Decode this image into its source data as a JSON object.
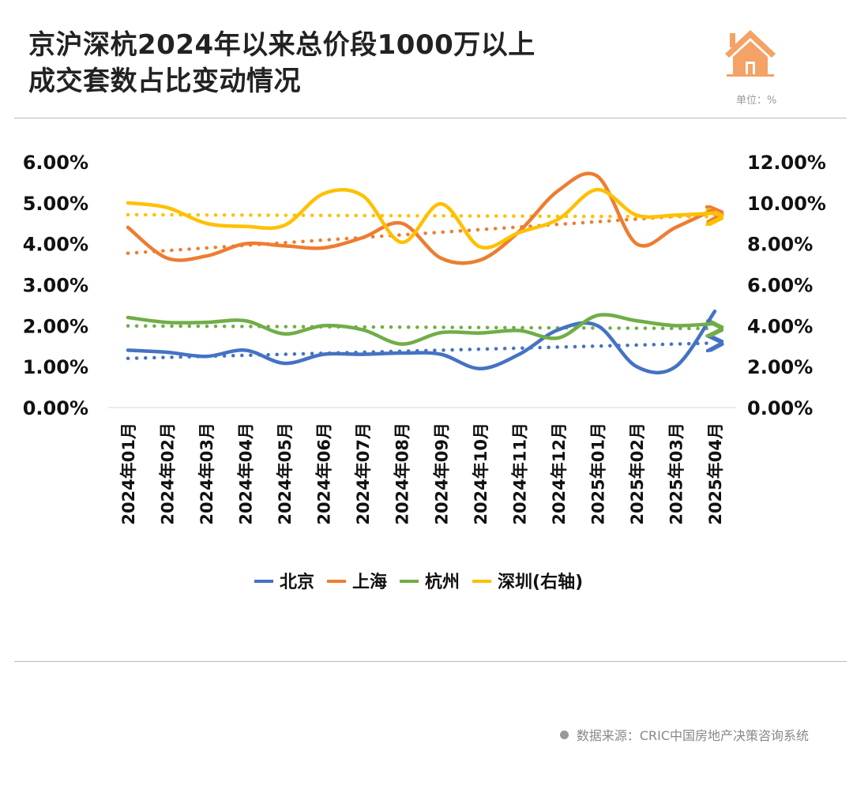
{
  "header": {
    "title_line1": "京沪深杭2024年以来总价段1000万以上",
    "title_line2": "成交套数占比变动情况",
    "unit": "单位：%",
    "icon": "house-icon"
  },
  "footer": {
    "source": "数据来源：CRIC中国房地产决策咨询系统"
  },
  "chart_data": {
    "type": "line",
    "title": "京沪深杭2024年以来总价段1000万以上成交套数占比变动情况",
    "categories": [
      "2024年01月",
      "2024年02月",
      "2024年03月",
      "2024年04月",
      "2024年05月",
      "2024年06月",
      "2024年07月",
      "2024年08月",
      "2024年09月",
      "2024年10月",
      "2024年11月",
      "2024年12月",
      "2025年01月",
      "2025年02月",
      "2025年03月",
      "2025年04月"
    ],
    "left_axis": {
      "ylim": [
        0,
        6
      ],
      "ticks": [
        "0.00%",
        "1.00%",
        "2.00%",
        "3.00%",
        "4.00%",
        "5.00%",
        "6.00%"
      ]
    },
    "right_axis": {
      "ylim": [
        0,
        12
      ],
      "ticks": [
        "0.00%",
        "2.00%",
        "4.00%",
        "6.00%",
        "8.00%",
        "10.00%",
        "12.00%"
      ]
    },
    "grid": false,
    "legend_position": "bottom",
    "trendlines": "linear, dotted",
    "series": [
      {
        "name": "北京",
        "axis": "left",
        "color": "#4472C4",
        "values": [
          1.4,
          1.35,
          1.25,
          1.4,
          1.08,
          1.3,
          1.3,
          1.33,
          1.3,
          0.95,
          1.3,
          1.9,
          2.0,
          1.0,
          1.0,
          2.35
        ]
      },
      {
        "name": "上海",
        "axis": "left",
        "color": "#ED7D31",
        "values": [
          4.4,
          3.65,
          3.7,
          4.0,
          3.95,
          3.9,
          4.15,
          4.5,
          3.65,
          3.6,
          4.3,
          5.3,
          5.65,
          4.0,
          4.4,
          4.85
        ]
      },
      {
        "name": "杭州",
        "axis": "left",
        "color": "#70AD47",
        "values": [
          2.2,
          2.08,
          2.08,
          2.12,
          1.8,
          2.0,
          1.9,
          1.55,
          1.83,
          1.82,
          1.88,
          1.7,
          2.25,
          2.12,
          2.0,
          2.05
        ]
      },
      {
        "name": "深圳(右轴)",
        "axis": "right",
        "color": "#FFC000",
        "values": [
          10.0,
          9.77,
          9.0,
          8.85,
          8.9,
          10.45,
          10.35,
          8.07,
          9.95,
          7.85,
          8.55,
          9.2,
          10.65,
          9.4,
          9.4,
          9.5
        ]
      }
    ]
  }
}
